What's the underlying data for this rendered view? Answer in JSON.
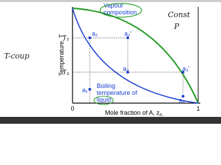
{
  "axes": {
    "y_label": "Temperature, T",
    "x_label": "Mole fraction of A, z",
    "x_label_sub": "A",
    "x_ticks": [
      "0",
      "1"
    ],
    "y_ticks": [
      "T₂",
      "T₃"
    ]
  },
  "curves": {
    "vapour": [
      "Vapour",
      "composition"
    ],
    "liquid": [
      "Boiling",
      "temperature of",
      "liquid"
    ]
  },
  "points": [
    "a₁",
    "a₂",
    "a₂'",
    "a₃",
    "a₃'",
    "a₄"
  ],
  "handwriting": {
    "left": "T-coup",
    "const": "Const",
    "p": "P"
  }
}
